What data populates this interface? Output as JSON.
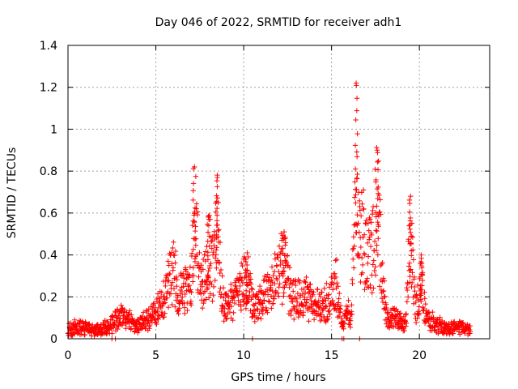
{
  "chart_data": {
    "type": "scatter",
    "title": "Day 046 of 2022, SRMTID for receiver adh1",
    "xlabel": "GPS time / hours",
    "ylabel": "SRMTID / TECUs",
    "xlim": [
      0,
      24
    ],
    "ylim": [
      0,
      1.4
    ],
    "x_ticks": [
      "0",
      "5",
      "10",
      "15",
      "20"
    ],
    "x_tick_values": [
      0,
      5,
      10,
      15,
      20
    ],
    "y_ticks": [
      "0",
      "0.2",
      "0.4",
      "0.6",
      "0.8",
      "1",
      "1.2",
      "1.4"
    ],
    "y_tick_values": [
      0,
      0.2,
      0.4,
      0.6,
      0.8,
      1.0,
      1.2,
      1.4
    ],
    "grid": true,
    "marker": "plus",
    "series_color": "#ff0000",
    "series": [
      {
        "name": "adh1",
        "envelope": [
          [
            0.0,
            0.05
          ],
          [
            0.5,
            0.06
          ],
          [
            1.0,
            0.05
          ],
          [
            1.5,
            0.04
          ],
          [
            2.0,
            0.05
          ],
          [
            2.5,
            0.08
          ],
          [
            3.0,
            0.12
          ],
          [
            3.5,
            0.09
          ],
          [
            4.0,
            0.07
          ],
          [
            4.5,
            0.1
          ],
          [
            5.0,
            0.14
          ],
          [
            5.5,
            0.22
          ],
          [
            5.8,
            0.32
          ],
          [
            6.0,
            0.36
          ],
          [
            6.3,
            0.22
          ],
          [
            6.6,
            0.24
          ],
          [
            7.0,
            0.3
          ],
          [
            7.2,
            0.7
          ],
          [
            7.5,
            0.3
          ],
          [
            7.8,
            0.32
          ],
          [
            8.0,
            0.45
          ],
          [
            8.3,
            0.38
          ],
          [
            8.5,
            0.6
          ],
          [
            8.8,
            0.2
          ],
          [
            9.2,
            0.18
          ],
          [
            9.6,
            0.22
          ],
          [
            10.0,
            0.3
          ],
          [
            10.3,
            0.25
          ],
          [
            10.6,
            0.15
          ],
          [
            11.0,
            0.2
          ],
          [
            11.5,
            0.25
          ],
          [
            12.0,
            0.35
          ],
          [
            12.3,
            0.4
          ],
          [
            12.6,
            0.25
          ],
          [
            13.0,
            0.2
          ],
          [
            13.5,
            0.22
          ],
          [
            14.0,
            0.18
          ],
          [
            14.5,
            0.17
          ],
          [
            15.0,
            0.22
          ],
          [
            15.3,
            0.3
          ],
          [
            15.6,
            0.05
          ],
          [
            15.9,
            0.15
          ],
          [
            16.1,
            0.1
          ],
          [
            16.4,
            0.7
          ],
          [
            16.6,
            0.5
          ],
          [
            16.8,
            0.55
          ],
          [
            17.0,
            0.4
          ],
          [
            17.3,
            0.45
          ],
          [
            17.6,
            0.75
          ],
          [
            17.9,
            0.3
          ],
          [
            18.2,
            0.08
          ],
          [
            18.5,
            0.12
          ],
          [
            18.8,
            0.1
          ],
          [
            19.2,
            0.07
          ],
          [
            19.5,
            0.55
          ],
          [
            19.8,
            0.15
          ],
          [
            20.1,
            0.3
          ],
          [
            20.4,
            0.1
          ],
          [
            20.8,
            0.09
          ],
          [
            21.2,
            0.07
          ],
          [
            21.6,
            0.05
          ],
          [
            22.0,
            0.06
          ],
          [
            22.5,
            0.06
          ],
          [
            22.9,
            0.05
          ]
        ],
        "spikes": [
          {
            "x": 7.2,
            "y": 0.82
          },
          {
            "x": 8.5,
            "y": 0.77
          },
          {
            "x": 16.4,
            "y": 1.22
          },
          {
            "x": 17.6,
            "y": 0.9
          },
          {
            "x": 19.5,
            "y": 0.68
          },
          {
            "x": 20.1,
            "y": 0.4
          },
          {
            "x": 12.3,
            "y": 0.51
          },
          {
            "x": 10.2,
            "y": 0.41
          },
          {
            "x": 8.0,
            "y": 0.58
          }
        ],
        "markers_at_zero_x": [
          2.5,
          2.7,
          10.5,
          15.6,
          15.7,
          16.6
        ]
      }
    ]
  }
}
